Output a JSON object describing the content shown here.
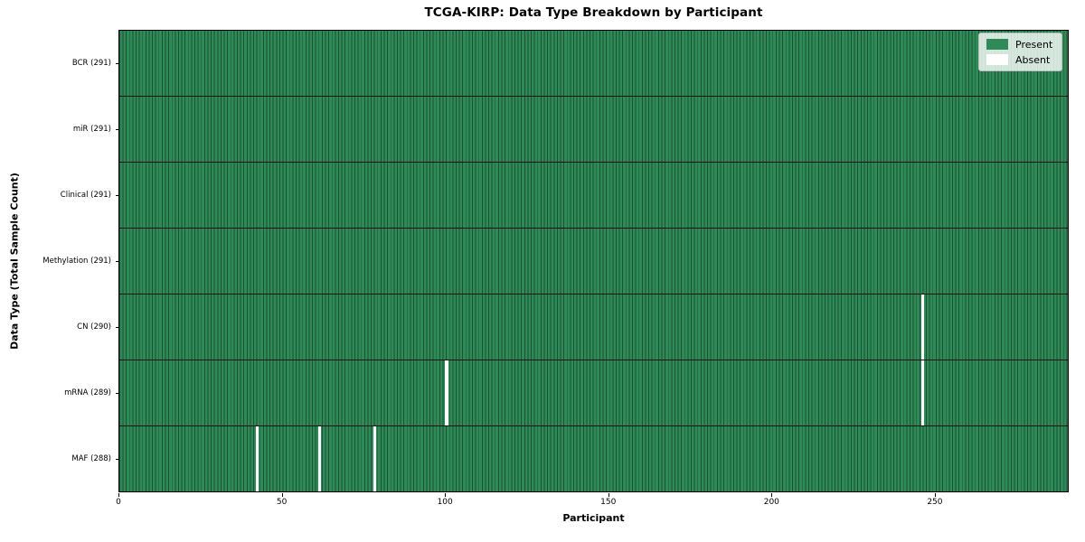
{
  "figure": {
    "background": "#ffffff"
  },
  "chart_data": {
    "type": "heatmap",
    "title": "TCGA-KIRP: Data Type Breakdown by Participant",
    "xlabel": "Participant",
    "ylabel": "Data Type (Total Sample Count)",
    "x_range": [
      0,
      291
    ],
    "x_ticks": [
      0,
      50,
      100,
      150,
      200,
      250
    ],
    "n_participants": 291,
    "grid": false,
    "rows": [
      {
        "name": "bcr",
        "label": "BCR (291)",
        "total_samples": 291,
        "absent_participants": []
      },
      {
        "name": "mir",
        "label": "miR (291)",
        "total_samples": 291,
        "absent_participants": []
      },
      {
        "name": "clinical",
        "label": "Clinical (291)",
        "total_samples": 291,
        "absent_participants": []
      },
      {
        "name": "methylation",
        "label": "Methylation (291)",
        "total_samples": 291,
        "absent_participants": []
      },
      {
        "name": "cn",
        "label": "CN (290)",
        "total_samples": 290,
        "absent_participants": [
          246
        ]
      },
      {
        "name": "mrna",
        "label": "mRNA (289)",
        "total_samples": 289,
        "absent_participants": [
          100,
          246
        ]
      },
      {
        "name": "maf",
        "label": "MAF (288)",
        "total_samples": 288,
        "absent_participants": [
          42,
          61,
          78
        ]
      }
    ],
    "legend": {
      "position": "upper right",
      "entries": [
        {
          "label": "Present",
          "color": "#2e8b57"
        },
        {
          "label": "Absent",
          "color": "#ffffff"
        }
      ]
    },
    "colors": {
      "present": "#2e8b57",
      "absent": "#ffffff",
      "cell_edge": "#1e4f35",
      "row_separator": "#0d0d0d",
      "frame": "#000000"
    }
  }
}
